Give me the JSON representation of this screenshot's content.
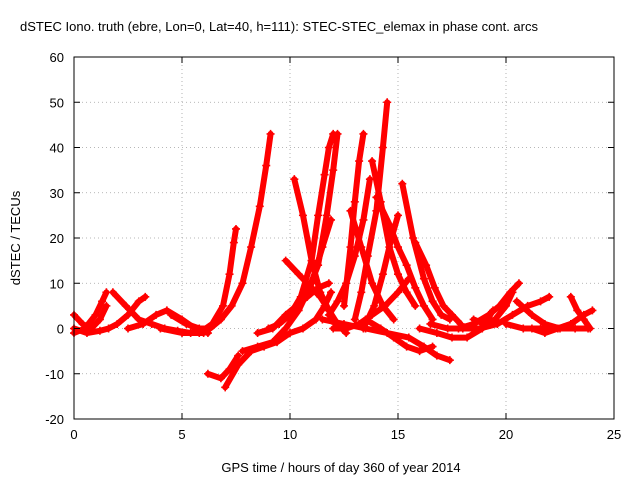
{
  "chart_data": {
    "type": "line",
    "title": "dSTEC Iono. truth (ebre, Lon=0, Lat=40, h=111): STEC-STEC_elemax in phase cont. arcs",
    "xlabel": "GPS time / hours of day 360 of year 2014",
    "ylabel": "dSTEC  / TECUs",
    "xlim": [
      0,
      25
    ],
    "ylim": [
      -20,
      60
    ],
    "xticks": [
      0,
      5,
      10,
      15,
      20,
      25
    ],
    "yticks": [
      -20,
      -10,
      0,
      10,
      20,
      30,
      40,
      50,
      60
    ],
    "xtick_labels": [
      "0",
      "5",
      "10",
      "15",
      "20",
      "25"
    ],
    "ytick_labels": [
      "-20",
      "-10",
      "0",
      "10",
      "20",
      "30",
      "40",
      "50",
      "60"
    ],
    "grid": true,
    "marker": "plus",
    "color": "#ff0000",
    "series": [
      {
        "x": [
          0.0,
          0.4,
          0.8,
          1.2,
          1.5
        ],
        "y": [
          3,
          1,
          0,
          2,
          5
        ]
      },
      {
        "x": [
          0.0,
          0.6,
          1.2,
          1.6,
          2.0,
          2.5,
          3.0,
          3.3
        ],
        "y": [
          0,
          -1,
          -0.5,
          0,
          1,
          3,
          6,
          7
        ]
      },
      {
        "x": [
          0.0,
          0.5,
          1.0,
          1.3,
          1.5
        ],
        "y": [
          -1,
          0,
          3,
          6,
          8
        ]
      },
      {
        "x": [
          1.8,
          2.4,
          3.0,
          3.6,
          4.2,
          4.8,
          5.4,
          6.0
        ],
        "y": [
          8,
          5,
          2,
          1,
          0,
          -0.5,
          -1,
          -1
        ]
      },
      {
        "x": [
          2.5,
          3.2,
          3.8,
          4.3,
          5.0,
          5.6,
          6.2
        ],
        "y": [
          0,
          1,
          3,
          4,
          2,
          0,
          -1
        ]
      },
      {
        "x": [
          4.5,
          5.2,
          5.8,
          6.3,
          6.8,
          7.3,
          7.8,
          8.2,
          8.6,
          8.9,
          9.1
        ],
        "y": [
          3,
          1,
          0,
          0,
          2,
          5,
          10,
          18,
          27,
          36,
          43
        ]
      },
      {
        "x": [
          4.0,
          5.0,
          5.8,
          6.4,
          6.9,
          7.2,
          7.4,
          7.5
        ],
        "y": [
          0,
          -1,
          -1,
          1,
          5,
          12,
          19,
          22
        ]
      },
      {
        "x": [
          6.2,
          6.8,
          7.2,
          7.6
        ],
        "y": [
          -10,
          -11,
          -9,
          -6
        ]
      },
      {
        "x": [
          7.0,
          7.6,
          8.2,
          8.8,
          9.4,
          10.0,
          10.6,
          11.2,
          11.6,
          11.9
        ],
        "y": [
          -13,
          -8,
          -5,
          -4,
          -3,
          -1,
          0,
          2,
          5,
          8
        ]
      },
      {
        "x": [
          7.8,
          8.5,
          9.2,
          9.8,
          10.4,
          11.0,
          11.5,
          11.9
        ],
        "y": [
          -5,
          -4,
          -3,
          0,
          4,
          10,
          18,
          24
        ]
      },
      {
        "x": [
          9.0,
          9.5,
          10.0,
          10.5,
          11.0,
          11.3,
          11.6,
          11.8,
          12.0
        ],
        "y": [
          0,
          1,
          3,
          7,
          15,
          25,
          34,
          40,
          43
        ]
      },
      {
        "x": [
          9.8,
          10.4,
          11.0,
          11.4,
          11.8,
          12.1
        ],
        "y": [
          15,
          12,
          9,
          7,
          4,
          1
        ]
      },
      {
        "x": [
          10.2,
          10.6,
          11.0,
          11.4,
          11.8,
          12.2,
          12.6
        ],
        "y": [
          33,
          25,
          15,
          8,
          4,
          1,
          -1
        ]
      },
      {
        "x": [
          8.5,
          9.2,
          9.8,
          10.3,
          10.8,
          11.3,
          11.8
        ],
        "y": [
          -1,
          0,
          3,
          5,
          7,
          9,
          10
        ]
      },
      {
        "x": [
          10.8,
          11.3,
          11.7,
          12.0,
          12.2
        ],
        "y": [
          8,
          14,
          25,
          35,
          43
        ]
      },
      {
        "x": [
          11.8,
          12.2,
          12.6,
          13.0,
          13.4,
          13.7
        ],
        "y": [
          3,
          6,
          10,
          16,
          24,
          33
        ]
      },
      {
        "x": [
          12.5,
          12.8,
          13.0,
          13.2,
          13.4
        ],
        "y": [
          5,
          18,
          28,
          37,
          43
        ]
      },
      {
        "x": [
          12.8,
          13.3,
          13.8,
          14.3,
          14.8
        ],
        "y": [
          26,
          18,
          10,
          5,
          2
        ]
      },
      {
        "x": [
          13.0,
          13.3,
          13.6,
          14.0,
          14.3,
          14.5
        ],
        "y": [
          2,
          8,
          16,
          26,
          40,
          50
        ]
      },
      {
        "x": [
          13.8,
          14.2,
          14.6,
          15.0,
          15.4,
          15.8
        ],
        "y": [
          37,
          28,
          18,
          12,
          8,
          5
        ]
      },
      {
        "x": [
          13.4,
          13.9,
          14.3,
          14.7,
          15.0
        ],
        "y": [
          0,
          5,
          12,
          20,
          25
        ]
      },
      {
        "x": [
          14.0,
          14.6,
          15.0,
          15.4,
          15.8,
          16.2,
          16.6
        ],
        "y": [
          29,
          23,
          18,
          14,
          9,
          5,
          2
        ]
      },
      {
        "x": [
          15.2,
          15.7,
          16.2,
          16.6,
          17.0,
          17.4
        ],
        "y": [
          32,
          20,
          11,
          6,
          3,
          2
        ]
      },
      {
        "x": [
          15.8,
          16.3,
          16.7,
          17.1,
          17.5,
          17.9
        ],
        "y": [
          19,
          14,
          9,
          5,
          3,
          1
        ]
      },
      {
        "x": [
          12.0,
          12.6,
          13.2,
          13.8,
          14.4,
          15.0,
          15.5
        ],
        "y": [
          0,
          0,
          1,
          3,
          5,
          8,
          11
        ]
      },
      {
        "x": [
          11.5,
          12.5,
          13.5,
          14.5,
          15.5,
          16.2,
          16.8,
          17.4
        ],
        "y": [
          2,
          1,
          0,
          -1,
          -2,
          -4,
          -6,
          -7
        ]
      },
      {
        "x": [
          13.5,
          14.2,
          14.8,
          15.4,
          16.0,
          16.6
        ],
        "y": [
          2,
          0,
          -2,
          -4,
          -5,
          -4
        ]
      },
      {
        "x": [
          16.0,
          16.8,
          17.5,
          18.2,
          18.9,
          19.4
        ],
        "y": [
          0,
          -1,
          -2,
          -2,
          0,
          4
        ]
      },
      {
        "x": [
          16.5,
          17.3,
          18.0,
          18.8,
          19.6,
          20.3,
          21.0,
          21.6,
          22.0
        ],
        "y": [
          1,
          0,
          0,
          0,
          1,
          3,
          5,
          6,
          7
        ]
      },
      {
        "x": [
          18.5,
          19.0,
          19.5,
          20.0,
          20.3
        ],
        "y": [
          2,
          1,
          2,
          5,
          8
        ]
      },
      {
        "x": [
          17.8,
          18.5,
          19.2,
          19.7,
          20.2,
          20.6
        ],
        "y": [
          0,
          1,
          3,
          5,
          8,
          10
        ]
      },
      {
        "x": [
          20.5,
          21.2,
          21.8,
          22.5,
          23.2,
          23.8
        ],
        "y": [
          6,
          3,
          1,
          0,
          0,
          0
        ]
      },
      {
        "x": [
          21.2,
          21.8,
          22.4,
          23.0,
          23.6,
          24.0
        ],
        "y": [
          0,
          -1,
          0,
          1,
          3,
          4
        ]
      },
      {
        "x": [
          23.0,
          23.3,
          23.6,
          23.9
        ],
        "y": [
          7,
          4,
          2,
          0
        ]
      },
      {
        "x": [
          20.0,
          20.8,
          21.6,
          22.4,
          23.0
        ],
        "y": [
          1,
          0,
          0,
          0,
          1
        ]
      }
    ]
  }
}
